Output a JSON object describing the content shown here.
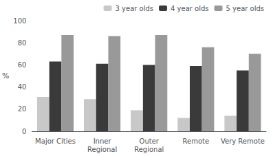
{
  "chart_data": {
    "type": "bar",
    "categories": [
      "Major Cities",
      "Inner\nRegional",
      "Outer\nRegional",
      "Remote",
      "Very Remote"
    ],
    "series": [
      {
        "name": "3 year olds",
        "color": "#c8c8c8",
        "values": [
          31,
          29,
          19,
          12,
          14
        ]
      },
      {
        "name": "4 year olds",
        "color": "#3a3a3a",
        "values": [
          63,
          61,
          60,
          59,
          55
        ]
      },
      {
        "name": "5 year olds",
        "color": "#999999",
        "values": [
          87,
          86,
          87,
          76,
          70
        ]
      }
    ],
    "ylabel": "%",
    "ylim": [
      0,
      100
    ],
    "yticks": [
      0,
      20,
      40,
      60,
      80,
      100
    ],
    "grid": false,
    "legend": "upper right"
  }
}
